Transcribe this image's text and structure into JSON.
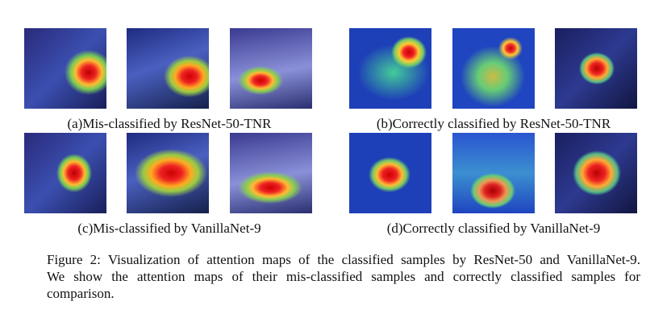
{
  "panels": [
    {
      "caption": "(a)Mis-classified by ResNet-50-TNR"
    },
    {
      "caption": "(b)Correctly classified by ResNet-50-TNR"
    },
    {
      "caption": "(c)Mis-classified by VanillaNet-9"
    },
    {
      "caption": "(d)Correctly classified by VanillaNet-9"
    }
  ],
  "figure_caption": {
    "lines": [
      "Figure 2: Visualization of attention maps of the classified samples by ResNet-50 and VanillaNet-9.",
      "We show the attention maps of their mis-classified samples and correctly classified samples for",
      "comparison."
    ]
  }
}
